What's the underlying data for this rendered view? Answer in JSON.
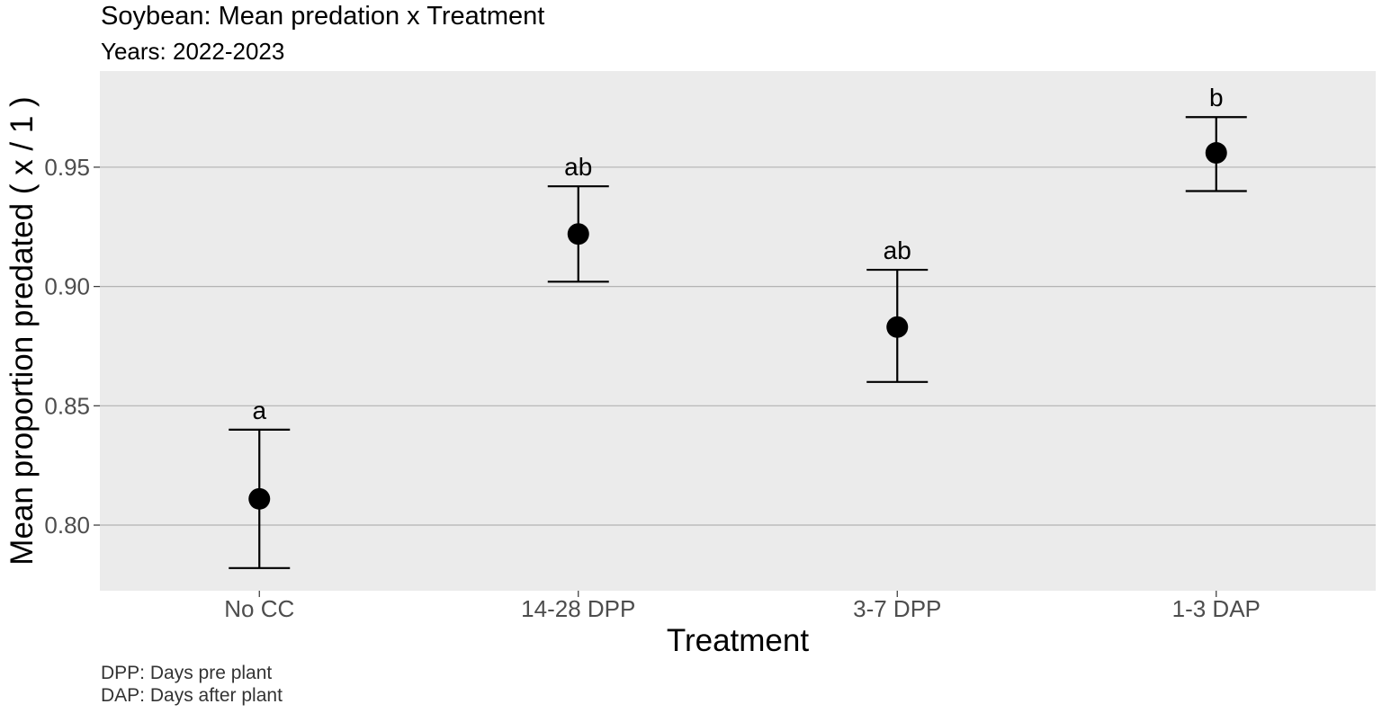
{
  "chart_data": {
    "type": "scatter",
    "title": "Soybean: Mean predation x Treatment",
    "subtitle": "Years: 2022-2023",
    "xlabel": "Treatment",
    "ylabel": "Mean proportion predated ( x / 1 )",
    "categories": [
      "No CC",
      "14-28 DPP",
      "3-7 DPP",
      "1-3 DAP"
    ],
    "values": [
      0.811,
      0.922,
      0.883,
      0.956
    ],
    "error_lower": [
      0.782,
      0.902,
      0.86,
      0.94
    ],
    "error_upper": [
      0.84,
      0.942,
      0.907,
      0.971
    ],
    "significance_labels": [
      "a",
      "ab",
      "ab",
      "b"
    ],
    "ylim": [
      0.7725,
      0.9903
    ],
    "yticks": [
      0.8,
      0.85,
      0.9,
      0.95
    ],
    "ytick_labels": [
      "0.80",
      "0.85",
      "0.90",
      "0.95"
    ],
    "grid": "horizontal major",
    "legend": "none",
    "panel_background": "#ebebeb",
    "grid_color": "#b3b3b3",
    "point_color": "#000000",
    "captions": [
      "DPP: Days pre plant",
      "DAP: Days after plant"
    ]
  }
}
